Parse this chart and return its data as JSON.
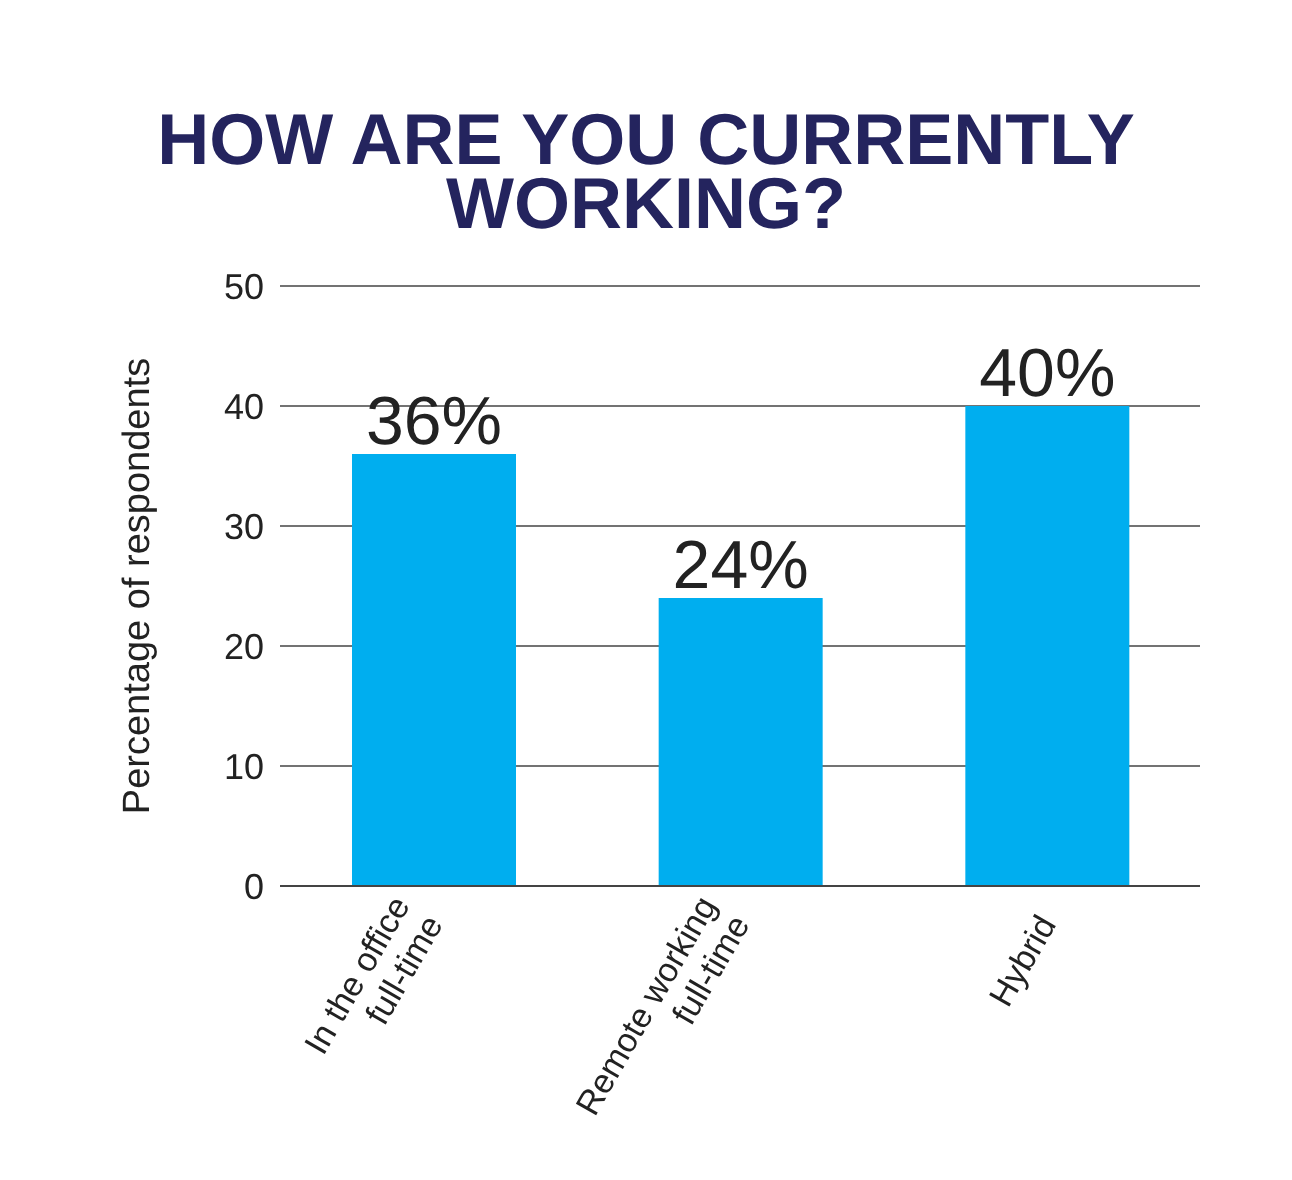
{
  "chart_data": {
    "type": "bar",
    "title": "HOW ARE YOU CURRENTLY WORKING?",
    "ylabel": "Percentage of respondents",
    "categories": [
      "In the office\nfull-time",
      "Remote working\nfull-time",
      "Hybrid"
    ],
    "values": [
      36,
      24,
      40
    ],
    "value_labels": [
      "36%",
      "24%",
      "40%"
    ],
    "color": "#00aeef",
    "ylim": [
      0,
      50
    ],
    "yticks": [
      0,
      10,
      20,
      30,
      40,
      50
    ],
    "grid": "y"
  }
}
